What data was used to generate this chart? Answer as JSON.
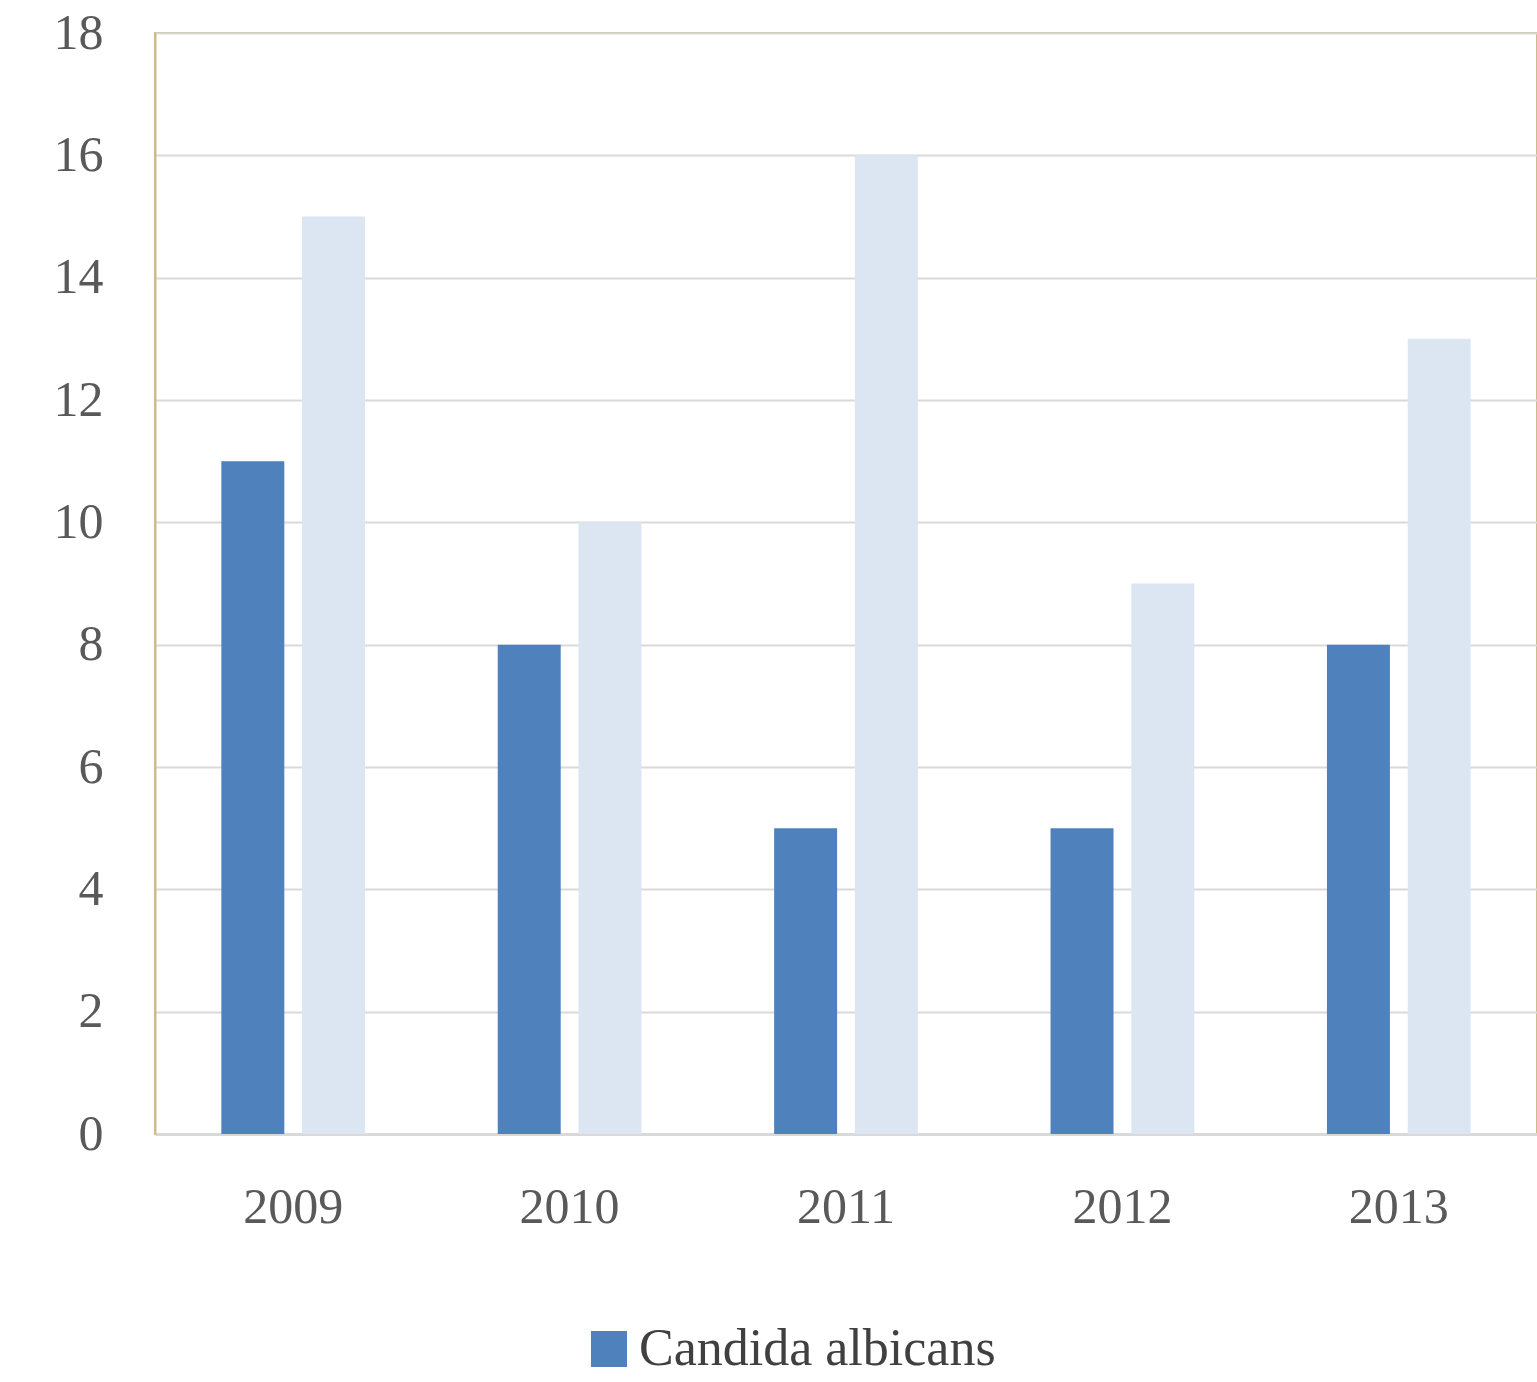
{
  "chart_data": {
    "type": "bar",
    "categories": [
      "2009",
      "2010",
      "2011",
      "2012",
      "2013"
    ],
    "series": [
      {
        "name": "Candida albicans",
        "color": "#4f81bd",
        "values": [
          11,
          8,
          5,
          5,
          8
        ]
      },
      {
        "color": "#dce6f2",
        "values": [
          15,
          10,
          16,
          9,
          13
        ]
      }
    ],
    "ylim": [
      0,
      18
    ],
    "yticks": [
      0,
      2,
      4,
      6,
      8,
      10,
      12,
      14,
      16,
      18
    ],
    "grid": "y",
    "legend": "bottom"
  }
}
